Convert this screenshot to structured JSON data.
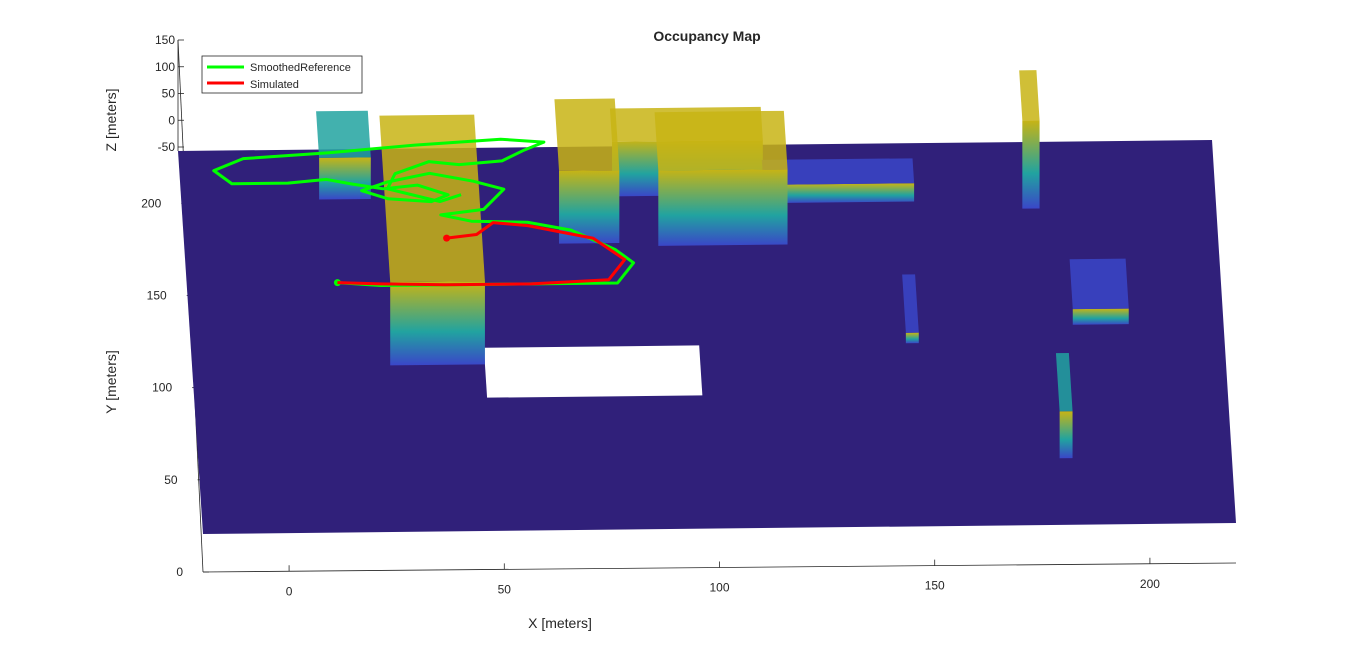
{
  "chart_data": {
    "type": "3d-occupancy-map",
    "title": "Occupancy Map",
    "xlabel": "X [meters]",
    "ylabel": "Y [meters]",
    "zlabel": "Z [meters]",
    "xlim": [
      -20,
      220
    ],
    "ylim": [
      0,
      230
    ],
    "zlim": [
      -50,
      150
    ],
    "x_ticks": [
      0,
      50,
      100,
      150,
      200
    ],
    "y_ticks": [
      0,
      50,
      100,
      150,
      200
    ],
    "z_ticks": [
      -50,
      0,
      50,
      100,
      150
    ],
    "grid": false,
    "legend": {
      "position": "top-left",
      "entries": [
        {
          "name": "SmoothedReference",
          "color": "#00ff00"
        },
        {
          "name": "Simulated",
          "color": "#ff0000"
        }
      ]
    },
    "colors": {
      "ground": "#30207a",
      "obstacle_low": "#3a46c8",
      "obstacle_mid": "#21a3a0",
      "obstacle_high": "#c8b414"
    },
    "series": [
      {
        "name": "SmoothedReference",
        "color": "#00ff00",
        "points": [
          [
            15,
            150
          ],
          [
            25,
            148
          ],
          [
            45,
            148
          ],
          [
            80,
            148
          ],
          [
            84,
            160
          ],
          [
            80,
            168
          ],
          [
            70,
            180
          ],
          [
            60,
            185
          ],
          [
            47,
            186
          ],
          [
            40,
            190
          ],
          [
            50,
            193
          ],
          [
            55,
            205
          ],
          [
            48,
            210
          ],
          [
            38,
            215
          ],
          [
            28,
            210
          ],
          [
            22,
            205
          ],
          [
            28,
            200
          ],
          [
            38,
            198
          ],
          [
            42,
            202
          ],
          [
            35,
            208
          ],
          [
            27,
            206
          ],
          [
            20,
            209
          ],
          [
            14,
            212
          ],
          [
            5,
            210
          ],
          [
            -8,
            210
          ],
          [
            -12,
            218
          ],
          [
            -5,
            225
          ],
          [
            15,
            228
          ],
          [
            35,
            232
          ],
          [
            55,
            235
          ],
          [
            65,
            233
          ],
          [
            60,
            228
          ],
          [
            55,
            222
          ],
          [
            45,
            220
          ],
          [
            38,
            222
          ],
          [
            30,
            215
          ],
          [
            28,
            206
          ],
          [
            40,
            198
          ],
          [
            45,
            202
          ]
        ],
        "start": [
          15,
          150
        ]
      },
      {
        "name": "Simulated",
        "color": "#ff0000",
        "points": [
          [
            41,
            176
          ],
          [
            48,
            178
          ],
          [
            52,
            185
          ],
          [
            60,
            183
          ],
          [
            75,
            175
          ],
          [
            82,
            162
          ],
          [
            78,
            150
          ],
          [
            60,
            148
          ],
          [
            40,
            148
          ],
          [
            25,
            149
          ],
          [
            15,
            150
          ]
        ],
        "start": [
          41,
          176
        ]
      }
    ],
    "obstacles": [
      {
        "x": [
          12,
          24
        ],
        "y": [
          200,
          228
        ],
        "z": [
          -50,
          30
        ]
      },
      {
        "x": [
          26,
          48
        ],
        "y": [
          100,
          200
        ],
        "z": [
          -50,
          110
        ]
      },
      {
        "x": [
          67,
          81
        ],
        "y": [
          172,
          215
        ],
        "z": [
          -50,
          90
        ]
      },
      {
        "x": [
          80,
          115
        ],
        "y": [
          200,
          220
        ],
        "z": [
          -50,
          55
        ]
      },
      {
        "x": [
          90,
          120
        ],
        "y": [
          170,
          205
        ],
        "z": [
          -50,
          95
        ]
      },
      {
        "x": [
          115,
          150
        ],
        "y": [
          195,
          210
        ],
        "z": [
          -50,
          -15
        ]
      },
      {
        "x": [
          146,
          149
        ],
        "y": [
          110,
          145
        ],
        "z": [
          -50,
          -30
        ]
      },
      {
        "x": [
          175,
          179
        ],
        "y": [
          190,
          220
        ],
        "z": [
          -50,
          120
        ]
      },
      {
        "x": [
          185,
          198
        ],
        "y": [
          120,
          150
        ],
        "z": [
          -50,
          -20
        ]
      },
      {
        "x": [
          180,
          183
        ],
        "y": [
          40,
          75
        ],
        "z": [
          -50,
          40
        ]
      }
    ],
    "free_region": {
      "x": [
        48,
        98
      ],
      "y": [
        80,
        110
      ]
    }
  }
}
